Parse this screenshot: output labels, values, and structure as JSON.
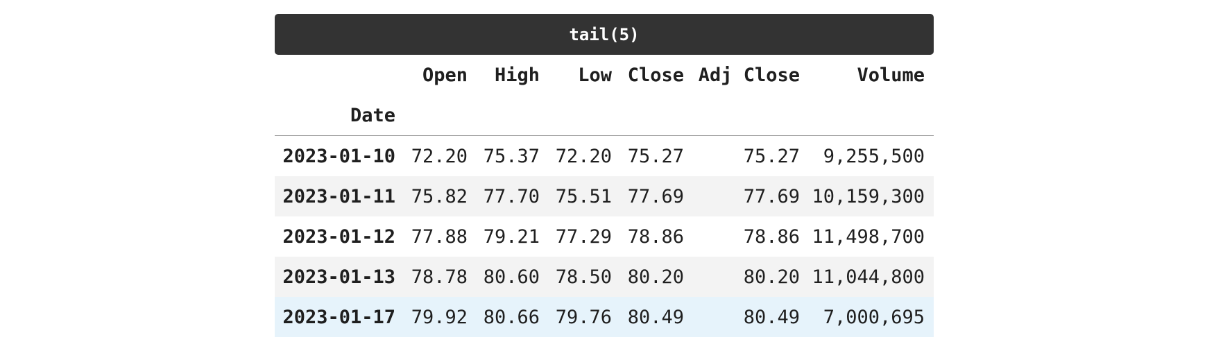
{
  "title": "tail(5)",
  "index_name": "Date",
  "columns": [
    "Open",
    "High",
    "Low",
    "Close",
    "Adj Close",
    "Volume"
  ],
  "rows": [
    {
      "date": "2023-01-10",
      "open": "72.20",
      "high": "75.37",
      "low": "72.20",
      "close": "75.27",
      "adj_close": "75.27",
      "volume": "9,255,500"
    },
    {
      "date": "2023-01-11",
      "open": "75.82",
      "high": "77.70",
      "low": "75.51",
      "close": "77.69",
      "adj_close": "77.69",
      "volume": "10,159,300"
    },
    {
      "date": "2023-01-12",
      "open": "77.88",
      "high": "79.21",
      "low": "77.29",
      "close": "78.86",
      "adj_close": "78.86",
      "volume": "11,498,700"
    },
    {
      "date": "2023-01-13",
      "open": "78.78",
      "high": "80.60",
      "low": "78.50",
      "close": "80.20",
      "adj_close": "80.20",
      "volume": "11,044,800"
    },
    {
      "date": "2023-01-17",
      "open": "79.92",
      "high": "80.66",
      "low": "79.76",
      "close": "80.49",
      "adj_close": "80.49",
      "volume": "7,000,695"
    }
  ],
  "colors": {
    "title_bg": "#333333",
    "stripe_bg": "#f3f3f3",
    "highlight_bg": "#e6f3fb"
  }
}
